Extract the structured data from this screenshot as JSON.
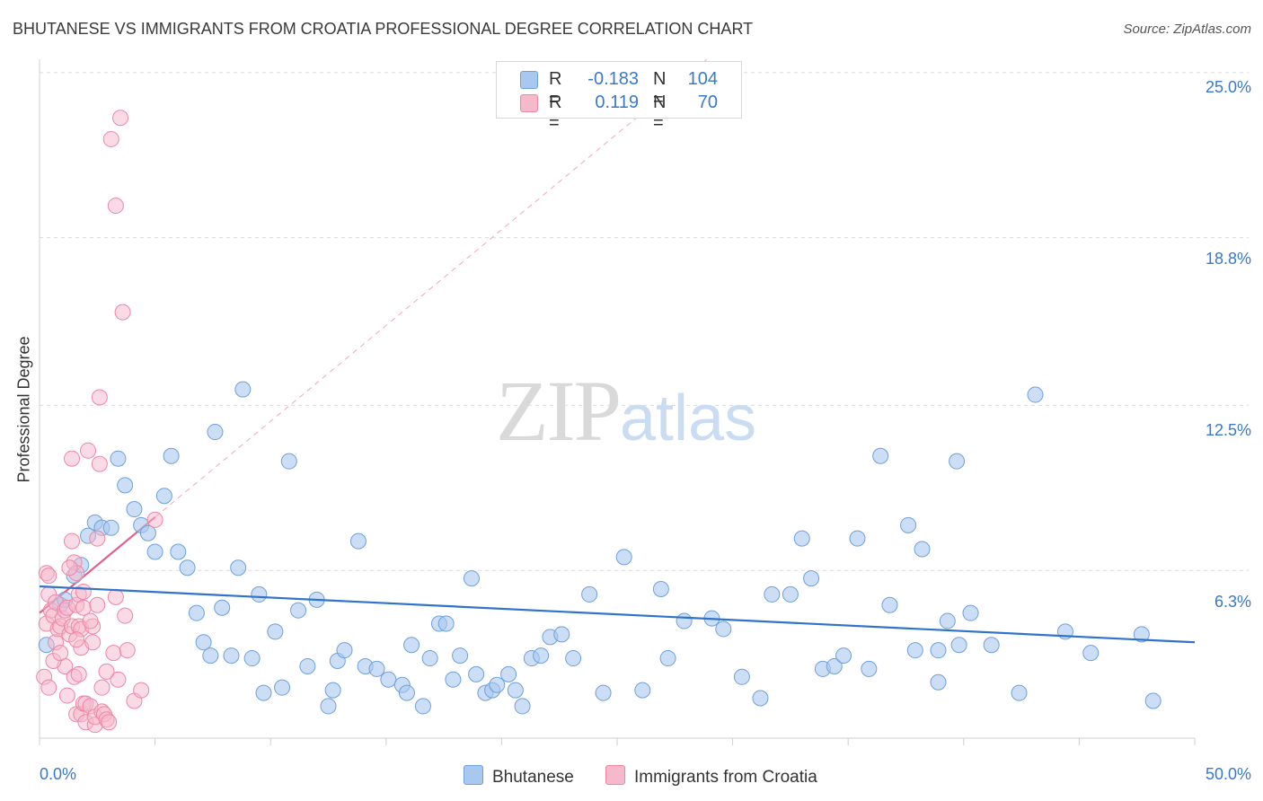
{
  "header": {
    "title": "BHUTANESE VS IMMIGRANTS FROM CROATIA PROFESSIONAL DEGREE CORRELATION CHART",
    "source": "Source: ZipAtlas.com"
  },
  "watermark": {
    "zip": "ZIP",
    "atlas": "atlas"
  },
  "legend": {
    "rows": [
      {
        "r_label": "R =",
        "r_value": "-0.183",
        "n_label": "N =",
        "n_value": "104",
        "color": "#a9c8ef"
      },
      {
        "r_label": "R =",
        "r_value": "0.119",
        "n_label": "N =",
        "n_value": "70",
        "color": "#f6b8cb"
      }
    ]
  },
  "colors": {
    "blue_fill": "#a9c8ef",
    "blue_stroke": "#6fa0dc",
    "blue_line": "#2f74c8",
    "pink_fill": "#f6b8cb",
    "pink_stroke": "#ee86a6",
    "pink_line": "#e0608a",
    "grid": "#dcdcdc",
    "axis_text": "#3a79c9"
  },
  "chart_data": {
    "type": "scatter",
    "title": "BHUTANESE VS IMMIGRANTS FROM CROATIA PROFESSIONAL DEGREE CORRELATION CHART",
    "xlabel": "",
    "ylabel": "Professional Degree",
    "xlim": [
      0,
      50
    ],
    "ylim": [
      0,
      25.5
    ],
    "x_tick_labels": [
      "0.0%",
      "50.0%"
    ],
    "y_ticks": [
      6.3,
      12.5,
      18.8,
      25.0
    ],
    "y_tick_labels": [
      "6.3%",
      "12.5%",
      "18.8%",
      "25.0%"
    ],
    "grid": true,
    "legend_position": "top-center",
    "series": [
      {
        "name": "Bhutanese",
        "r": -0.183,
        "n": 104,
        "trend": {
          "x": [
            0,
            50
          ],
          "y": [
            5.7,
            3.6
          ]
        },
        "points": [
          [
            0.3,
            3.5
          ],
          [
            0.9,
            5.0
          ],
          [
            1.1,
            5.2
          ],
          [
            1.5,
            6.1
          ],
          [
            1.8,
            6.5
          ],
          [
            2.1,
            7.6
          ],
          [
            2.4,
            8.1
          ],
          [
            2.7,
            7.9
          ],
          [
            3.1,
            7.9
          ],
          [
            3.4,
            10.5
          ],
          [
            3.7,
            9.5
          ],
          [
            4.1,
            8.6
          ],
          [
            4.4,
            8.0
          ],
          [
            4.7,
            7.7
          ],
          [
            5.0,
            7.0
          ],
          [
            5.4,
            9.1
          ],
          [
            5.7,
            10.6
          ],
          [
            6.0,
            7.0
          ],
          [
            6.4,
            6.4
          ],
          [
            6.8,
            4.7
          ],
          [
            7.1,
            3.6
          ],
          [
            7.4,
            3.1
          ],
          [
            7.6,
            11.5
          ],
          [
            7.9,
            4.9
          ],
          [
            8.3,
            3.1
          ],
          [
            8.6,
            6.4
          ],
          [
            8.8,
            13.1
          ],
          [
            9.2,
            3.0
          ],
          [
            9.5,
            5.4
          ],
          [
            9.7,
            1.7
          ],
          [
            10.2,
            4.0
          ],
          [
            10.5,
            1.9
          ],
          [
            10.8,
            10.4
          ],
          [
            11.2,
            4.8
          ],
          [
            11.6,
            2.7
          ],
          [
            12.0,
            5.2
          ],
          [
            12.5,
            1.2
          ],
          [
            12.7,
            1.8
          ],
          [
            12.9,
            2.9
          ],
          [
            13.2,
            3.3
          ],
          [
            13.8,
            7.4
          ],
          [
            14.1,
            2.7
          ],
          [
            14.6,
            2.6
          ],
          [
            15.1,
            2.2
          ],
          [
            15.7,
            2.0
          ],
          [
            15.9,
            1.7
          ],
          [
            16.1,
            3.5
          ],
          [
            16.6,
            1.2
          ],
          [
            16.9,
            3.0
          ],
          [
            17.3,
            4.3
          ],
          [
            17.6,
            4.3
          ],
          [
            17.9,
            2.2
          ],
          [
            18.2,
            3.1
          ],
          [
            18.7,
            6.0
          ],
          [
            18.9,
            2.4
          ],
          [
            19.3,
            1.7
          ],
          [
            19.6,
            1.8
          ],
          [
            19.8,
            2.0
          ],
          [
            20.3,
            2.4
          ],
          [
            20.6,
            1.8
          ],
          [
            20.9,
            1.2
          ],
          [
            21.3,
            3.0
          ],
          [
            21.7,
            3.1
          ],
          [
            22.1,
            3.8
          ],
          [
            22.6,
            3.9
          ],
          [
            23.1,
            3.0
          ],
          [
            23.8,
            5.4
          ],
          [
            24.4,
            1.7
          ],
          [
            25.3,
            6.8
          ],
          [
            26.1,
            1.8
          ],
          [
            26.9,
            5.6
          ],
          [
            27.2,
            3.0
          ],
          [
            27.9,
            4.4
          ],
          [
            29.1,
            4.5
          ],
          [
            29.6,
            4.1
          ],
          [
            30.4,
            2.3
          ],
          [
            31.2,
            1.5
          ],
          [
            31.7,
            5.4
          ],
          [
            32.5,
            5.4
          ],
          [
            33.0,
            7.5
          ],
          [
            33.4,
            6.0
          ],
          [
            33.9,
            2.6
          ],
          [
            34.4,
            2.7
          ],
          [
            34.8,
            3.1
          ],
          [
            35.4,
            7.5
          ],
          [
            35.9,
            2.6
          ],
          [
            36.4,
            10.6
          ],
          [
            36.8,
            5.0
          ],
          [
            37.6,
            8.0
          ],
          [
            37.9,
            3.3
          ],
          [
            38.2,
            7.1
          ],
          [
            38.9,
            3.3
          ],
          [
            38.9,
            2.1
          ],
          [
            39.3,
            4.4
          ],
          [
            39.7,
            10.4
          ],
          [
            39.8,
            3.5
          ],
          [
            40.3,
            4.7
          ],
          [
            41.2,
            3.5
          ],
          [
            42.4,
            1.7
          ],
          [
            43.1,
            12.9
          ],
          [
            44.4,
            4.0
          ],
          [
            45.5,
            3.2
          ],
          [
            47.7,
            3.9
          ],
          [
            48.2,
            1.4
          ]
        ]
      },
      {
        "name": "Immigrants from Croatia",
        "r": 0.119,
        "n": 70,
        "trend": {
          "x": [
            0,
            5.0
          ],
          "y": [
            4.7,
            8.3
          ]
        },
        "points": [
          [
            0.3,
            6.2
          ],
          [
            0.3,
            4.3
          ],
          [
            0.4,
            5.4
          ],
          [
            0.4,
            6.1
          ],
          [
            0.5,
            4.8
          ],
          [
            0.6,
            4.6
          ],
          [
            0.7,
            5.1
          ],
          [
            0.7,
            3.6
          ],
          [
            0.8,
            4.1
          ],
          [
            0.9,
            4.2
          ],
          [
            1.0,
            4.5
          ],
          [
            1.1,
            4.8
          ],
          [
            1.1,
            2.7
          ],
          [
            1.2,
            4.9
          ],
          [
            1.3,
            3.9
          ],
          [
            1.4,
            4.2
          ],
          [
            1.4,
            7.4
          ],
          [
            1.4,
            10.5
          ],
          [
            1.5,
            6.6
          ],
          [
            1.5,
            2.3
          ],
          [
            1.6,
            5.0
          ],
          [
            1.6,
            6.2
          ],
          [
            1.6,
            0.9
          ],
          [
            1.7,
            2.4
          ],
          [
            1.7,
            4.2
          ],
          [
            1.7,
            5.4
          ],
          [
            1.8,
            0.9
          ],
          [
            1.8,
            4.1
          ],
          [
            1.8,
            3.4
          ],
          [
            1.9,
            5.5
          ],
          [
            1.9,
            4.9
          ],
          [
            1.9,
            1.3
          ],
          [
            2.0,
            1.3
          ],
          [
            2.0,
            0.6
          ],
          [
            2.1,
            10.8
          ],
          [
            2.2,
            1.2
          ],
          [
            2.3,
            4.2
          ],
          [
            2.3,
            3.6
          ],
          [
            2.4,
            0.5
          ],
          [
            2.4,
            0.8
          ],
          [
            2.5,
            7.5
          ],
          [
            2.5,
            5.0
          ],
          [
            2.6,
            12.8
          ],
          [
            2.6,
            10.3
          ],
          [
            2.7,
            1.9
          ],
          [
            2.7,
            1.0
          ],
          [
            2.8,
            0.9
          ],
          [
            2.9,
            0.7
          ],
          [
            3.0,
            0.6
          ],
          [
            3.1,
            22.5
          ],
          [
            3.2,
            3.2
          ],
          [
            3.3,
            5.3
          ],
          [
            3.3,
            20.0
          ],
          [
            3.4,
            2.2
          ],
          [
            3.5,
            23.3
          ],
          [
            3.6,
            16.0
          ],
          [
            3.8,
            3.3
          ],
          [
            4.1,
            1.4
          ],
          [
            4.4,
            1.8
          ],
          [
            5.0,
            8.2
          ],
          [
            0.2,
            2.3
          ],
          [
            0.4,
            1.9
          ],
          [
            0.6,
            2.9
          ],
          [
            0.9,
            3.2
          ],
          [
            1.2,
            1.6
          ],
          [
            1.3,
            6.4
          ],
          [
            1.6,
            3.7
          ],
          [
            2.2,
            4.4
          ],
          [
            2.9,
            2.5
          ],
          [
            3.7,
            4.6
          ]
        ]
      }
    ]
  },
  "axes": {
    "y_title": "Professional Degree",
    "x_tick_labels": [
      "0.0%",
      "50.0%"
    ],
    "y_tick_labels": [
      "6.3%",
      "12.5%",
      "18.8%",
      "25.0%"
    ]
  },
  "bottom_legend": [
    {
      "label": "Bhutanese",
      "color": "#a9c8ef"
    },
    {
      "label": "Immigrants from Croatia",
      "color": "#f6b8cb"
    }
  ]
}
